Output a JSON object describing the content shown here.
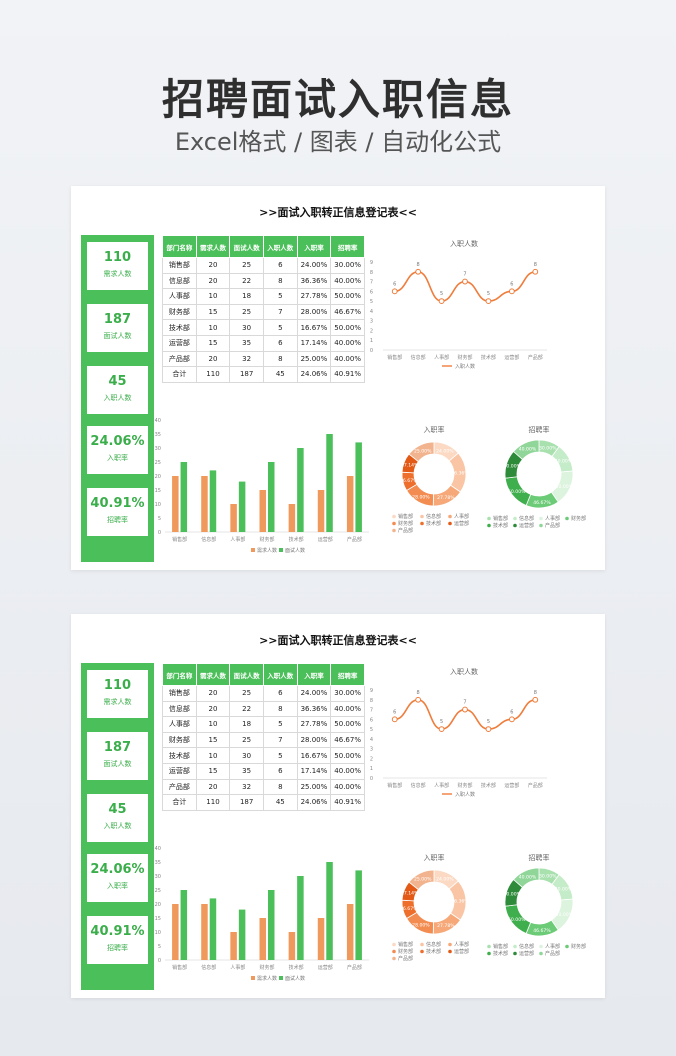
{
  "header": {
    "title": "招聘面试入职信息",
    "subtitle": "Excel格式 / 图表 / 自动化公式"
  },
  "sheet": {
    "title": ">>面试入职转正信息登记表<<",
    "kpis": [
      {
        "value": "110",
        "label": "需求人数"
      },
      {
        "value": "187",
        "label": "面试人数"
      },
      {
        "value": "45",
        "label": "入职人数"
      },
      {
        "value": "24.06%",
        "label": "入职率"
      },
      {
        "value": "40.91%",
        "label": "招聘率"
      }
    ],
    "table": {
      "headers": [
        "部门名称",
        "需求人数",
        "面试人数",
        "入职人数",
        "入职率",
        "招聘率"
      ],
      "rows": [
        [
          "销售部",
          "20",
          "25",
          "6",
          "24.00%",
          "30.00%"
        ],
        [
          "信息部",
          "20",
          "22",
          "8",
          "36.36%",
          "40.00%"
        ],
        [
          "人事部",
          "10",
          "18",
          "5",
          "27.78%",
          "50.00%"
        ],
        [
          "财务部",
          "15",
          "25",
          "7",
          "28.00%",
          "46.67%"
        ],
        [
          "技术部",
          "10",
          "30",
          "5",
          "16.67%",
          "50.00%"
        ],
        [
          "运营部",
          "15",
          "35",
          "6",
          "17.14%",
          "40.00%"
        ],
        [
          "产品部",
          "20",
          "32",
          "8",
          "25.00%",
          "40.00%"
        ]
      ],
      "total": [
        "合计",
        "110",
        "187",
        "45",
        "24.06%",
        "40.91%"
      ]
    }
  },
  "colors": {
    "green": "#4bbf59",
    "green_dark": "#2e8b3a",
    "orange": "#f0995c",
    "orange_line": "#ef7d3c"
  },
  "chart_data": [
    {
      "type": "line",
      "title": "入职人数",
      "categories": [
        "销售部",
        "信息部",
        "人事部",
        "财务部",
        "技术部",
        "运营部",
        "产品部"
      ],
      "values": [
        6,
        8,
        5,
        7,
        5,
        6,
        8
      ],
      "ylim": [
        0,
        9
      ],
      "yticks": [
        0,
        1,
        2,
        3,
        4,
        5,
        6,
        7,
        8,
        9
      ],
      "legend": "入职人数",
      "legend_position": "bottom",
      "smooth": true
    },
    {
      "type": "bar",
      "categories": [
        "销售部",
        "信息部",
        "人事部",
        "财务部",
        "技术部",
        "运营部",
        "产品部"
      ],
      "series": [
        {
          "name": "需求人数",
          "values": [
            20,
            20,
            10,
            15,
            10,
            15,
            20
          ]
        },
        {
          "name": "面试人数",
          "values": [
            25,
            22,
            18,
            25,
            30,
            35,
            32
          ]
        }
      ],
      "ylim": [
        0,
        40
      ],
      "yticks": [
        0,
        5,
        10,
        15,
        20,
        25,
        30,
        35,
        40
      ],
      "legend_position": "bottom"
    },
    {
      "type": "pie",
      "donut": true,
      "title": "入职率",
      "labels": [
        "销售部",
        "信息部",
        "人事部",
        "财务部",
        "技术部",
        "运营部",
        "产品部"
      ],
      "values": [
        24.0,
        36.36,
        27.78,
        28.0,
        16.67,
        17.14,
        25.0
      ],
      "value_labels": [
        "24.00%",
        "36.36%",
        "27.78%",
        "28.00%",
        "16.67%",
        "17.14%",
        "25.00%"
      ],
      "colors": [
        "#fbd9c3",
        "#f9c5a4",
        "#f6a878",
        "#f38c51",
        "#ee6e2b",
        "#e35a17",
        "#f2b48e"
      ],
      "legend_position": "bottom"
    },
    {
      "type": "pie",
      "donut": true,
      "title": "招聘率",
      "labels": [
        "销售部",
        "信息部",
        "人事部",
        "财务部",
        "技术部",
        "运营部",
        "产品部"
      ],
      "values": [
        30.0,
        40.0,
        50.0,
        46.67,
        50.0,
        40.0,
        40.0
      ],
      "value_labels": [
        "30.00%",
        "40.00%",
        "50.00%",
        "46.67%",
        "50.00%",
        "40.00%",
        "40.00%"
      ],
      "colors": [
        "#a8e0ae",
        "#c5ecc9",
        "#dcf3de",
        "#6ccb77",
        "#3fae4d",
        "#2e8b3a",
        "#8fd698"
      ],
      "legend_position": "bottom"
    }
  ]
}
